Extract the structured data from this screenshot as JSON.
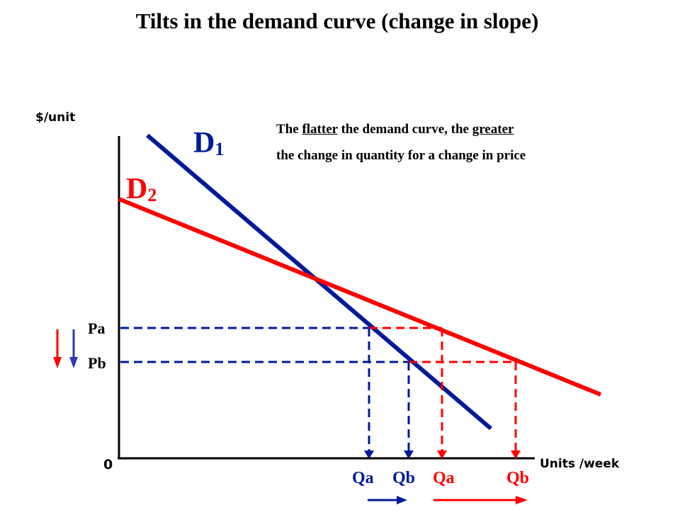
{
  "title": "Tilts in the demand curve (change in slope)",
  "y_axis_label": "$/unit",
  "x_axis_label": "Units /week",
  "origin_label": "0",
  "note": {
    "line1_before": "The ",
    "line1_word1": "flatter",
    "line1_middle": " the demand curve, the ",
    "line1_word2": "greater",
    "line2": "the change in quantity for a change in price"
  },
  "curves": {
    "d1": {
      "letter": "D",
      "subscript": "1",
      "color": "#001a99"
    },
    "d2": {
      "letter": "D",
      "subscript": "2",
      "color": "#ff0000"
    }
  },
  "prices": {
    "pa": "Pa",
    "pb": "Pb"
  },
  "quantities": {
    "d1_qa": "Qa",
    "d1_qb": "Qb",
    "d2_qa": "Qa",
    "d2_qb": "Qb"
  },
  "colors": {
    "blue": "#001a99",
    "red": "#ff0000",
    "axis": "#000000"
  }
}
